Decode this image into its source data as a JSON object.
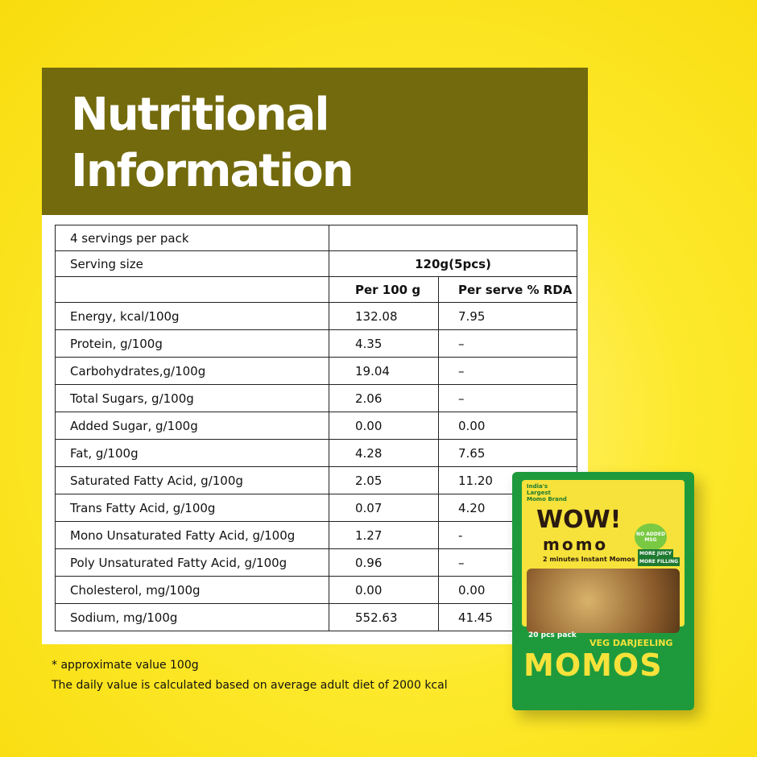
{
  "header": {
    "title_lines": [
      "Nutritional",
      "Information"
    ]
  },
  "table": {
    "servings": "4 servings per pack",
    "serving_size": {
      "label": "Serving size",
      "value": "120g(5pcs)"
    },
    "columns": [
      "Per 100 g",
      "Per serve % RDA"
    ],
    "rows": [
      {
        "nutrient": "Energy, kcal/100g",
        "per_100g": "132.08",
        "rda": "7.95"
      },
      {
        "nutrient": "Protein, g/100g",
        "per_100g": "4.35",
        "rda": "–"
      },
      {
        "nutrient": "Carbohydrates,g/100g",
        "per_100g": "19.04",
        "rda": "–"
      },
      {
        "nutrient": "Total Sugars, g/100g",
        "per_100g": "2.06",
        "rda": "–"
      },
      {
        "nutrient": "Added Sugar, g/100g",
        "per_100g": "0.00",
        "rda": "0.00"
      },
      {
        "nutrient": "Fat, g/100g",
        "per_100g": "4.28",
        "rda": "7.65"
      },
      {
        "nutrient": "Saturated Fatty Acid, g/100g",
        "per_100g": "2.05",
        "rda": "11.20"
      },
      {
        "nutrient": "Trans Fatty Acid, g/100g",
        "per_100g": "0.07",
        "rda": "4.20"
      },
      {
        "nutrient": "Mono Unsaturated Fatty Acid, g/100g",
        "per_100g": "1.27",
        "rda": "-"
      },
      {
        "nutrient": "Poly Unsaturated Fatty Acid, g/100g",
        "per_100g": "0.96",
        "rda": "–"
      },
      {
        "nutrient": "Cholesterol, mg/100g",
        "per_100g": "0.00",
        "rda": "0.00"
      },
      {
        "nutrient": "Sodium, mg/100g",
        "per_100g": "552.63",
        "rda": "41.45"
      }
    ]
  },
  "footnotes": [
    "* approximate value 100g",
    "The daily value is calculated based on average adult diet of 2000 kcal"
  ],
  "package": {
    "tagline": "India's Largest Momo Brand",
    "brand": "WOW!",
    "sub_brand": "momo",
    "subtitle": "2 minutes Instant Momos",
    "badge": "NO ADDED MSG",
    "claims": [
      "MORE JUICY",
      "MORE FILLING"
    ],
    "pack_size": "20 pcs pack",
    "variant": "VEG DARJEELING",
    "product": "MOMOS"
  }
}
